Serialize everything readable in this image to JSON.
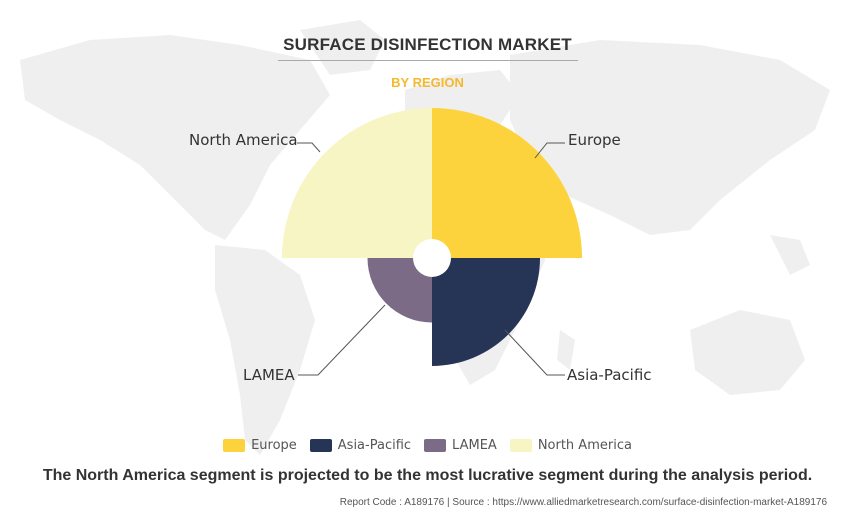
{
  "chart_data": {
    "type": "pie",
    "title": "SURFACE DISINFECTION MARKET",
    "subtitle": "BY REGION",
    "categories": [
      "Europe",
      "Asia-Pacific",
      "LAMEA",
      "North America"
    ],
    "values": [
      25,
      25,
      25,
      25
    ],
    "relative_radius": [
      1.0,
      0.72,
      0.43,
      1.0
    ],
    "colors": [
      "#fdd33d",
      "#263556",
      "#7b6b87",
      "#f6f5c3"
    ],
    "legend": "bottom"
  },
  "insight": "The North America segment is projected to be the most lucrative segment during the analysis period.",
  "source": "Report Code : A189176  |  Source : https://www.alliedmarketresearch.com/surface-disinfection-market-A189176"
}
